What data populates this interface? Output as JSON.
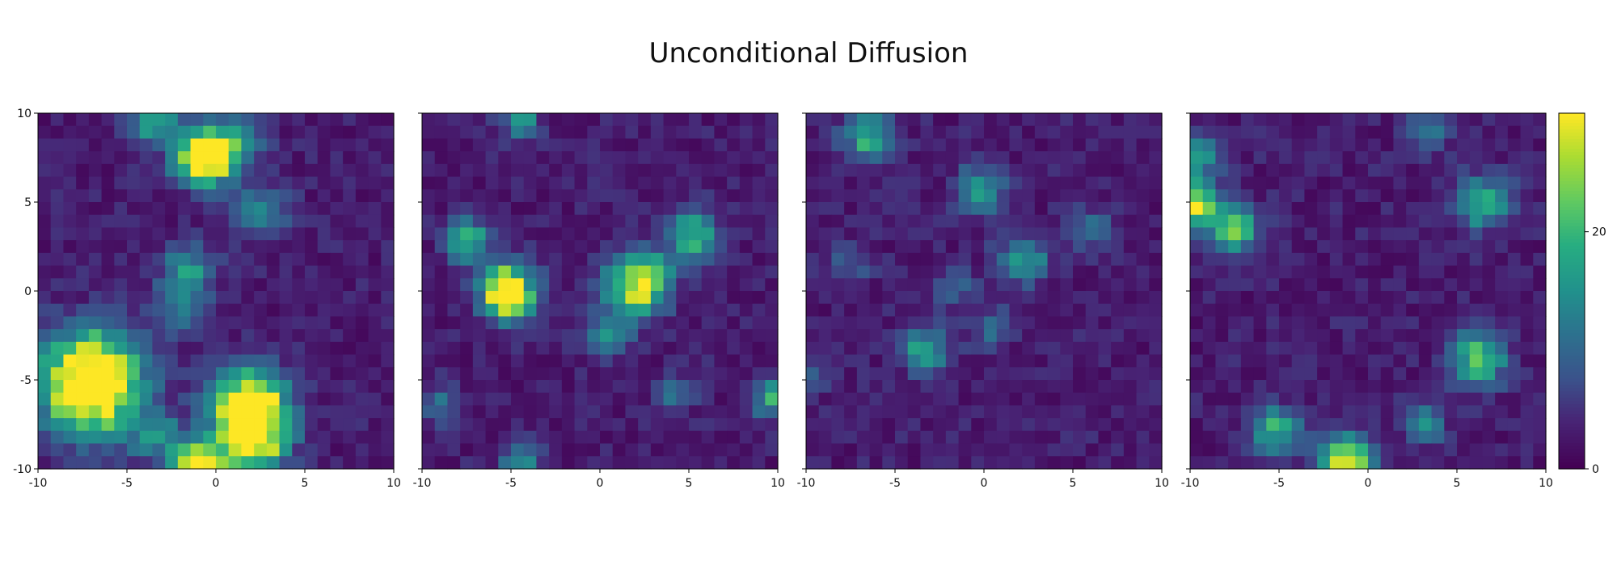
{
  "title": "Unconditional Diffusion",
  "chart_data": {
    "type": "heatmap",
    "title": "Unconditional Diffusion",
    "colormap": "viridis",
    "grid_size": 28,
    "xlim": [
      -10,
      10
    ],
    "ylim": [
      10,
      -10
    ],
    "xticks": [
      -10,
      -5,
      0,
      5,
      10
    ],
    "yticks": [
      -10,
      -5,
      0,
      5,
      10
    ],
    "xtick_labels": [
      "-10",
      "-5",
      "0",
      "5",
      "10"
    ],
    "ytick_labels": [
      "-10",
      "-5",
      "0",
      "5",
      "10"
    ],
    "colorbar": {
      "vmin": 0,
      "vmax": 30,
      "ticks": [
        0,
        20
      ],
      "tick_labels": [
        "0",
        "20"
      ]
    },
    "background_level": 2,
    "panels": [
      {
        "blobs": [
          {
            "x": -7.0,
            "y": -5.2,
            "peak": 40,
            "sigma": 1.9
          },
          {
            "x": 1.8,
            "y": -6.5,
            "peak": 36,
            "sigma": 1.4
          },
          {
            "x": 2.5,
            "y": -8.5,
            "peak": 22,
            "sigma": 1.1
          },
          {
            "x": -0.8,
            "y": -10.0,
            "peak": 34,
            "sigma": 1.1
          },
          {
            "x": -0.6,
            "y": 7.6,
            "peak": 38,
            "sigma": 1.1
          },
          {
            "x": -3.5,
            "y": 9.8,
            "peak": 18,
            "sigma": 0.9
          },
          {
            "x": -1.5,
            "y": 1.3,
            "peak": 12,
            "sigma": 1.0
          },
          {
            "x": -2.0,
            "y": -0.8,
            "peak": 10,
            "sigma": 1.0
          },
          {
            "x": 2.5,
            "y": 4.5,
            "peak": 12,
            "sigma": 1.0
          },
          {
            "x": -3.5,
            "y": -8.2,
            "peak": 12,
            "sigma": 0.9
          },
          {
            "x": 1.5,
            "y": 8.5,
            "peak": 10,
            "sigma": 0.9
          }
        ]
      },
      {
        "blobs": [
          {
            "x": -5.2,
            "y": -0.1,
            "peak": 36,
            "sigma": 1.0
          },
          {
            "x": 1.8,
            "y": 0.2,
            "peak": 20,
            "sigma": 1.2
          },
          {
            "x": 2.8,
            "y": 0.8,
            "peak": 12,
            "sigma": 0.9
          },
          {
            "x": 0.5,
            "y": -2.5,
            "peak": 12,
            "sigma": 0.8
          },
          {
            "x": 5.2,
            "y": 3.1,
            "peak": 16,
            "sigma": 1.0
          },
          {
            "x": -7.5,
            "y": 2.8,
            "peak": 18,
            "sigma": 0.8
          },
          {
            "x": 9.8,
            "y": -6.0,
            "peak": 16,
            "sigma": 0.8
          },
          {
            "x": -4.5,
            "y": -9.8,
            "peak": 12,
            "sigma": 0.8
          },
          {
            "x": -4.5,
            "y": 9.8,
            "peak": 12,
            "sigma": 0.8
          },
          {
            "x": 4.2,
            "y": -5.8,
            "peak": 10,
            "sigma": 0.7
          },
          {
            "x": -9.0,
            "y": -6.5,
            "peak": 8,
            "sigma": 0.8
          }
        ]
      },
      {
        "blobs": [
          {
            "x": -3.3,
            "y": -3.3,
            "peak": 15,
            "sigma": 0.9
          },
          {
            "x": 2.2,
            "y": 1.8,
            "peak": 15,
            "sigma": 0.9
          },
          {
            "x": -0.2,
            "y": 5.7,
            "peak": 14,
            "sigma": 0.9
          },
          {
            "x": -6.5,
            "y": 8.6,
            "peak": 15,
            "sigma": 1.0
          },
          {
            "x": 6.0,
            "y": 3.5,
            "peak": 8,
            "sigma": 0.8
          },
          {
            "x": 0.5,
            "y": -2.0,
            "peak": 8,
            "sigma": 0.8
          },
          {
            "x": -7.5,
            "y": 1.5,
            "peak": 6,
            "sigma": 0.8
          },
          {
            "x": -1.5,
            "y": 0.2,
            "peak": 6,
            "sigma": 0.8
          },
          {
            "x": -9.8,
            "y": -5.0,
            "peak": 6,
            "sigma": 0.6
          }
        ]
      },
      {
        "blobs": [
          {
            "x": -1.2,
            "y": -9.8,
            "peak": 26,
            "sigma": 1.1
          },
          {
            "x": -5.2,
            "y": -7.8,
            "peak": 18,
            "sigma": 0.9
          },
          {
            "x": 6.2,
            "y": -3.8,
            "peak": 22,
            "sigma": 1.0
          },
          {
            "x": -7.5,
            "y": 3.5,
            "peak": 20,
            "sigma": 0.9
          },
          {
            "x": -9.8,
            "y": 4.7,
            "peak": 28,
            "sigma": 0.8
          },
          {
            "x": -9.8,
            "y": 7.5,
            "peak": 14,
            "sigma": 1.0
          },
          {
            "x": 6.5,
            "y": 5.0,
            "peak": 16,
            "sigma": 1.0
          },
          {
            "x": 3.2,
            "y": -7.5,
            "peak": 10,
            "sigma": 0.8
          },
          {
            "x": 3.5,
            "y": 9.0,
            "peak": 8,
            "sigma": 0.8
          }
        ]
      }
    ]
  }
}
